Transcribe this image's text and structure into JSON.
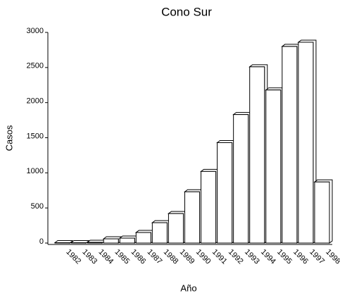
{
  "chart_data": {
    "type": "bar",
    "title": "Cono Sur",
    "x_label": "Año",
    "y_label": "Casos",
    "categories": [
      "1982",
      "1983",
      "1984",
      "1985",
      "1986",
      "1987",
      "1988",
      "1989",
      "1990",
      "1991",
      "1992",
      "1993",
      "1994",
      "1995",
      "1996",
      "1997",
      "1998"
    ],
    "values": [
      5,
      5,
      10,
      60,
      70,
      150,
      290,
      420,
      730,
      1020,
      1430,
      1830,
      2510,
      2180,
      2800,
      2860,
      870
    ],
    "color": "#ffffff",
    "ylim": [
      0,
      3000
    ],
    "yticks": [
      0,
      500,
      1000,
      1500,
      2000,
      2500,
      3000
    ],
    "grid": false
  }
}
